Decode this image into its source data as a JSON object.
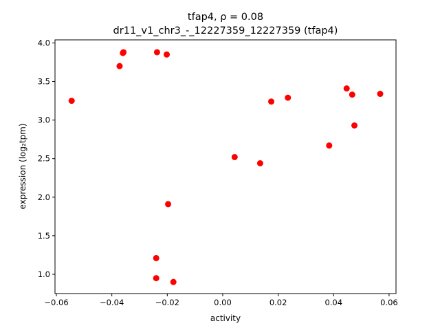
{
  "chart_data": {
    "type": "scatter",
    "title_line1": "tfap4, ρ = 0.08",
    "title_line2": "dr11_v1_chr3_-_12227359_12227359 (tfap4)",
    "xlabel": "activity",
    "ylabel": "expression (log₂tpm)",
    "xlim": [
      -0.0605,
      0.0625
    ],
    "ylim": [
      0.75,
      4.04
    ],
    "xticks": [
      -0.06,
      -0.04,
      -0.02,
      0.0,
      0.02,
      0.04,
      0.06
    ],
    "xtick_labels": [
      "−0.06",
      "−0.04",
      "−0.02",
      "0.00",
      "0.02",
      "0.04",
      "0.06"
    ],
    "yticks": [
      1.0,
      1.5,
      2.0,
      2.5,
      3.0,
      3.5,
      4.0
    ],
    "ytick_labels": [
      "1.0",
      "1.5",
      "2.0",
      "2.5",
      "3.0",
      "3.5",
      "4.0"
    ],
    "grid": false,
    "marker_color": "#ff0000",
    "points": [
      {
        "x": -0.0545,
        "y": 3.25
      },
      {
        "x": -0.0372,
        "y": 3.7
      },
      {
        "x": -0.036,
        "y": 3.87
      },
      {
        "x": -0.0358,
        "y": 3.88
      },
      {
        "x": -0.0237,
        "y": 3.88
      },
      {
        "x": -0.0202,
        "y": 3.85
      },
      {
        "x": -0.0197,
        "y": 1.91
      },
      {
        "x": -0.024,
        "y": 1.21
      },
      {
        "x": -0.024,
        "y": 0.95
      },
      {
        "x": -0.0178,
        "y": 0.9
      },
      {
        "x": 0.0043,
        "y": 2.52
      },
      {
        "x": 0.0135,
        "y": 2.44
      },
      {
        "x": 0.0175,
        "y": 3.24
      },
      {
        "x": 0.0235,
        "y": 3.29
      },
      {
        "x": 0.0384,
        "y": 2.67
      },
      {
        "x": 0.0447,
        "y": 3.41
      },
      {
        "x": 0.0467,
        "y": 3.33
      },
      {
        "x": 0.0475,
        "y": 2.93
      },
      {
        "x": 0.0568,
        "y": 3.34
      }
    ]
  }
}
